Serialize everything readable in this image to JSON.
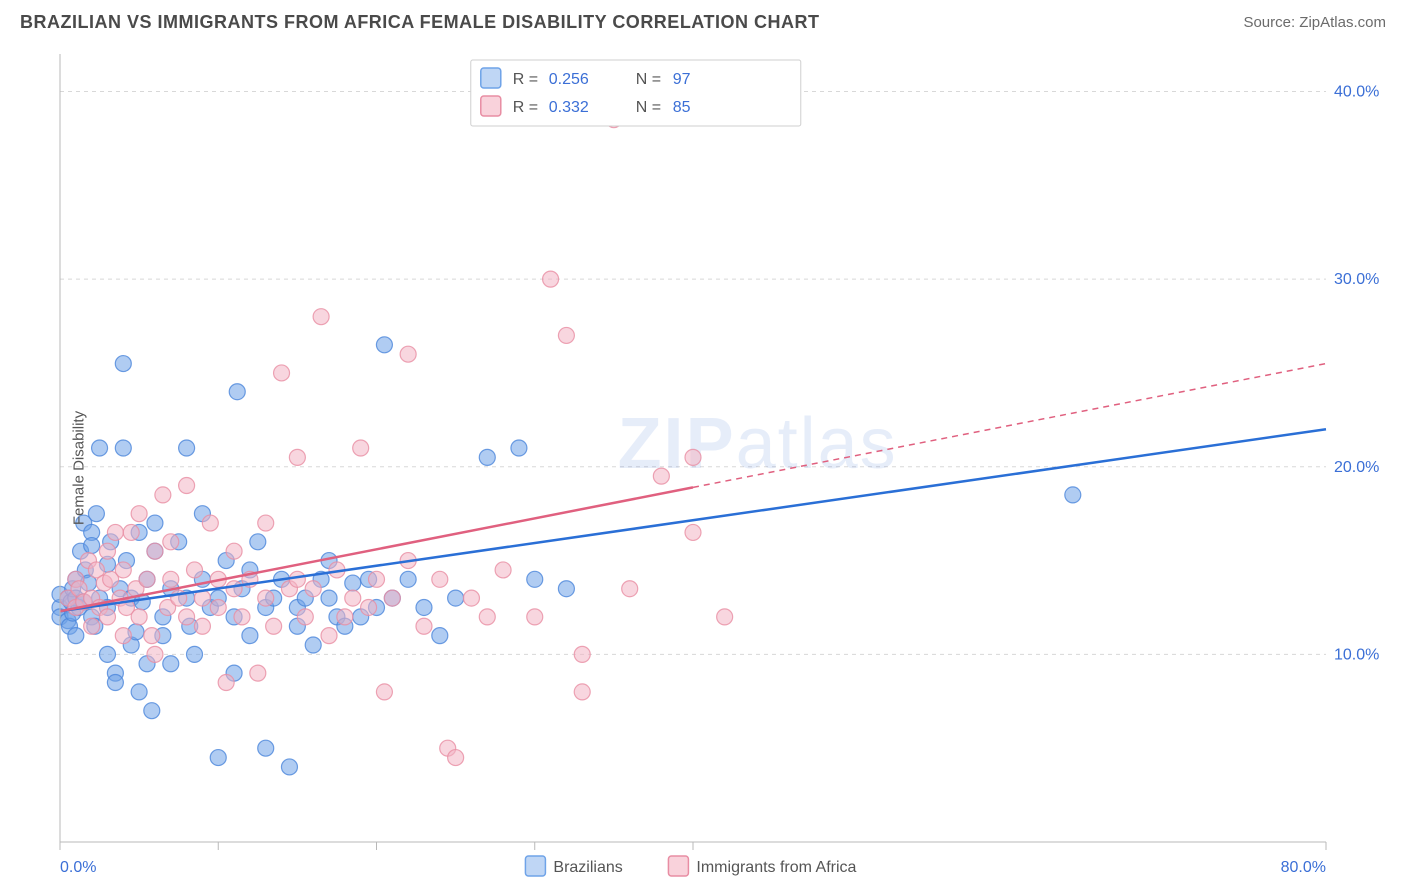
{
  "title": "BRAZILIAN VS IMMIGRANTS FROM AFRICA FEMALE DISABILITY CORRELATION CHART",
  "source": "Source: ZipAtlas.com",
  "ylabel": "Female Disability",
  "watermark": {
    "bold": "ZIP",
    "light": "atlas"
  },
  "chart": {
    "type": "scatter",
    "xlim": [
      0,
      80
    ],
    "ylim": [
      0,
      42
    ],
    "xticks": [
      0,
      10,
      20,
      30,
      40,
      80
    ],
    "yticks_grid": [
      10,
      20,
      30,
      40
    ],
    "ytick_labels": [
      "10.0%",
      "20.0%",
      "30.0%",
      "40.0%"
    ],
    "xtick_labels": {
      "min": "0.0%",
      "max": "80.0%"
    },
    "grid_color": "#d8d8d8",
    "axis_color": "#b8b8b8",
    "background_color": "#ffffff",
    "marker_radius": 8,
    "marker_opacity": 0.55,
    "marker_stroke_opacity": 0.8,
    "trend_line_width": 2.5,
    "series": [
      {
        "name": "Brazilians",
        "color": "#6fa3e8",
        "stroke": "#4b86db",
        "line_color": "#2a6fd6",
        "R": "0.256",
        "N": "97",
        "trend": {
          "x1": 0,
          "y1": 12.3,
          "x2": 80,
          "y2": 22.0,
          "solid_until_x": 80
        },
        "points": [
          [
            0,
            12.5
          ],
          [
            0,
            13.2
          ],
          [
            0,
            12.0
          ],
          [
            0.5,
            13.0
          ],
          [
            0.5,
            11.8
          ],
          [
            0.6,
            11.5
          ],
          [
            0.7,
            12.8
          ],
          [
            0.8,
            13.5
          ],
          [
            0.8,
            12.2
          ],
          [
            1,
            14.0
          ],
          [
            1,
            11.0
          ],
          [
            1,
            13.0
          ],
          [
            1.2,
            12.5
          ],
          [
            1.3,
            15.5
          ],
          [
            1.5,
            12.8
          ],
          [
            1.5,
            17.0
          ],
          [
            1.6,
            14.5
          ],
          [
            1.8,
            13.8
          ],
          [
            2,
            12.0
          ],
          [
            2,
            16.5
          ],
          [
            2,
            15.8
          ],
          [
            2.2,
            11.5
          ],
          [
            2.3,
            17.5
          ],
          [
            2.5,
            13.0
          ],
          [
            2.5,
            21.0
          ],
          [
            3,
            12.5
          ],
          [
            3,
            14.8
          ],
          [
            3,
            10.0
          ],
          [
            3.2,
            16.0
          ],
          [
            3.5,
            9.0
          ],
          [
            3.5,
            8.5
          ],
          [
            3.8,
            13.5
          ],
          [
            4,
            21.0
          ],
          [
            4,
            25.5
          ],
          [
            4.2,
            15.0
          ],
          [
            4.5,
            10.5
          ],
          [
            4.5,
            13.0
          ],
          [
            4.8,
            11.2
          ],
          [
            5,
            16.5
          ],
          [
            5,
            8.0
          ],
          [
            5.2,
            12.8
          ],
          [
            5.5,
            9.5
          ],
          [
            5.5,
            14.0
          ],
          [
            5.8,
            7.0
          ],
          [
            6,
            15.5
          ],
          [
            6,
            17.0
          ],
          [
            6.5,
            12.0
          ],
          [
            6.5,
            11.0
          ],
          [
            7,
            9.5
          ],
          [
            7,
            13.5
          ],
          [
            7.5,
            16.0
          ],
          [
            8,
            13.0
          ],
          [
            8,
            21.0
          ],
          [
            8.2,
            11.5
          ],
          [
            8.5,
            10.0
          ],
          [
            9,
            14.0
          ],
          [
            9,
            17.5
          ],
          [
            9.5,
            12.5
          ],
          [
            10,
            13.0
          ],
          [
            10,
            4.5
          ],
          [
            10.5,
            15.0
          ],
          [
            11,
            12.0
          ],
          [
            11,
            9.0
          ],
          [
            11.2,
            24.0
          ],
          [
            11.5,
            13.5
          ],
          [
            12,
            14.5
          ],
          [
            12,
            11.0
          ],
          [
            12.5,
            16.0
          ],
          [
            13,
            12.5
          ],
          [
            13,
            5.0
          ],
          [
            13.5,
            13.0
          ],
          [
            14,
            14.0
          ],
          [
            14.5,
            4.0
          ],
          [
            15,
            11.5
          ],
          [
            15,
            12.5
          ],
          [
            15.5,
            13.0
          ],
          [
            16,
            10.5
          ],
          [
            16.5,
            14.0
          ],
          [
            17,
            13.0
          ],
          [
            17,
            15.0
          ],
          [
            17.5,
            12.0
          ],
          [
            18,
            11.5
          ],
          [
            18.5,
            13.8
          ],
          [
            19,
            12.0
          ],
          [
            19.5,
            14.0
          ],
          [
            20,
            12.5
          ],
          [
            20.5,
            26.5
          ],
          [
            21,
            13.0
          ],
          [
            22,
            14.0
          ],
          [
            23,
            12.5
          ],
          [
            24,
            11.0
          ],
          [
            25,
            13.0
          ],
          [
            27,
            20.5
          ],
          [
            29,
            21.0
          ],
          [
            30,
            14.0
          ],
          [
            32,
            13.5
          ],
          [
            64,
            18.5
          ]
        ]
      },
      {
        "name": "Immigrants from Africa",
        "color": "#f2b5c4",
        "stroke": "#e88da3",
        "line_color": "#e0607f",
        "R": "0.332",
        "N": "85",
        "trend": {
          "x1": 0,
          "y1": 12.3,
          "x2": 80,
          "y2": 25.5,
          "solid_until_x": 40
        },
        "points": [
          [
            0.5,
            13.0
          ],
          [
            1,
            12.5
          ],
          [
            1,
            14.0
          ],
          [
            1.2,
            13.5
          ],
          [
            1.5,
            12.8
          ],
          [
            1.8,
            15.0
          ],
          [
            2,
            13.0
          ],
          [
            2,
            11.5
          ],
          [
            2.3,
            14.5
          ],
          [
            2.5,
            12.5
          ],
          [
            2.8,
            13.8
          ],
          [
            3,
            15.5
          ],
          [
            3,
            12.0
          ],
          [
            3.2,
            14.0
          ],
          [
            3.5,
            16.5
          ],
          [
            3.8,
            13.0
          ],
          [
            4,
            14.5
          ],
          [
            4,
            11.0
          ],
          [
            4.2,
            12.5
          ],
          [
            4.5,
            16.5
          ],
          [
            4.8,
            13.5
          ],
          [
            5,
            17.5
          ],
          [
            5,
            12.0
          ],
          [
            5.5,
            14.0
          ],
          [
            5.8,
            11.0
          ],
          [
            6,
            15.5
          ],
          [
            6,
            10.0
          ],
          [
            6.5,
            18.5
          ],
          [
            6.8,
            12.5
          ],
          [
            7,
            14.0
          ],
          [
            7,
            16.0
          ],
          [
            7.5,
            13.0
          ],
          [
            8,
            12.0
          ],
          [
            8,
            19.0
          ],
          [
            8.5,
            14.5
          ],
          [
            9,
            11.5
          ],
          [
            9,
            13.0
          ],
          [
            9.5,
            17.0
          ],
          [
            10,
            12.5
          ],
          [
            10,
            14.0
          ],
          [
            10.5,
            8.5
          ],
          [
            11,
            13.5
          ],
          [
            11,
            15.5
          ],
          [
            11.5,
            12.0
          ],
          [
            12,
            14.0
          ],
          [
            12.5,
            9.0
          ],
          [
            13,
            13.0
          ],
          [
            13,
            17.0
          ],
          [
            13.5,
            11.5
          ],
          [
            14,
            25.0
          ],
          [
            14.5,
            13.5
          ],
          [
            15,
            14.0
          ],
          [
            15,
            20.5
          ],
          [
            15.5,
            12.0
          ],
          [
            16,
            13.5
          ],
          [
            16.5,
            28.0
          ],
          [
            17,
            11.0
          ],
          [
            17.5,
            14.5
          ],
          [
            18,
            12.0
          ],
          [
            18.5,
            13.0
          ],
          [
            19,
            21.0
          ],
          [
            19.5,
            12.5
          ],
          [
            20,
            14.0
          ],
          [
            20.5,
            8.0
          ],
          [
            21,
            13.0
          ],
          [
            22,
            15.0
          ],
          [
            22,
            26.0
          ],
          [
            23,
            11.5
          ],
          [
            24,
            14.0
          ],
          [
            24.5,
            5.0
          ],
          [
            25,
            4.5
          ],
          [
            26,
            13.0
          ],
          [
            27,
            12.0
          ],
          [
            28,
            14.5
          ],
          [
            30,
            12.0
          ],
          [
            31,
            30.0
          ],
          [
            32,
            27.0
          ],
          [
            33,
            10.0
          ],
          [
            33,
            8.0
          ],
          [
            35,
            38.5
          ],
          [
            36,
            13.5
          ],
          [
            38,
            19.5
          ],
          [
            40,
            16.5
          ],
          [
            40,
            20.5
          ],
          [
            42,
            12.0
          ]
        ]
      }
    ],
    "legend_top": {
      "rows": [
        {
          "swatch_fill": "#bfd6f5",
          "swatch_stroke": "#6fa3e8",
          "r_label": "R =",
          "r_value": "0.256",
          "n_label": "N =",
          "n_value": "97"
        },
        {
          "swatch_fill": "#f9d2db",
          "swatch_stroke": "#e88da3",
          "r_label": "R =",
          "r_value": "0.332",
          "n_label": "N =",
          "n_value": "85"
        }
      ]
    },
    "legend_bottom": [
      {
        "swatch_fill": "#bfd6f5",
        "swatch_stroke": "#6fa3e8",
        "label": "Brazilians"
      },
      {
        "swatch_fill": "#f9d2db",
        "swatch_stroke": "#e88da3",
        "label": "Immigrants from Africa"
      }
    ]
  }
}
